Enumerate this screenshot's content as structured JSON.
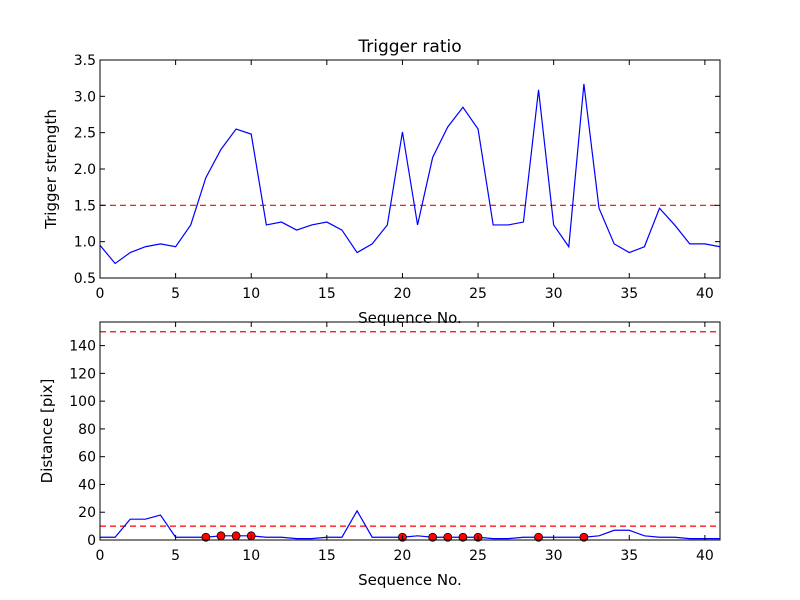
{
  "chart_data": [
    {
      "type": "line",
      "title": "Trigger ratio",
      "xlabel": "Sequence No.",
      "ylabel": "Trigger strength",
      "xlim": [
        0,
        41
      ],
      "ylim": [
        0.5,
        3.5
      ],
      "xticks": [
        0,
        5,
        10,
        15,
        20,
        25,
        30,
        35,
        40
      ],
      "yticks": [
        0.5,
        1.0,
        1.5,
        2.0,
        2.5,
        3.0,
        3.5
      ],
      "ytick_labels": [
        "0.5",
        "1.0",
        "1.5",
        "2.0",
        "2.5",
        "3.0",
        "3.5"
      ],
      "grid": false,
      "series": [
        {
          "color": "#0000ff",
          "x": [
            0,
            1,
            2,
            3,
            4,
            5,
            6,
            7,
            8,
            9,
            10,
            11,
            12,
            13,
            14,
            15,
            16,
            17,
            18,
            19,
            20,
            21,
            22,
            23,
            24,
            25,
            26,
            27,
            28,
            29,
            30,
            31,
            32,
            33,
            34,
            35,
            36,
            37,
            38,
            39,
            40,
            41
          ],
          "values": [
            0.95,
            0.7,
            0.85,
            0.93,
            0.97,
            0.93,
            1.23,
            1.88,
            2.27,
            2.55,
            2.48,
            1.23,
            1.27,
            1.16,
            1.23,
            1.27,
            1.16,
            0.85,
            0.97,
            1.23,
            2.51,
            1.23,
            2.16,
            2.58,
            2.85,
            2.55,
            1.23,
            1.23,
            1.27,
            3.09,
            1.23,
            0.93,
            3.17,
            1.46,
            0.97,
            0.85,
            0.93,
            1.46,
            1.23,
            0.97,
            0.97,
            0.93
          ]
        }
      ],
      "threshold": {
        "value": 1.5,
        "color": "#ff0000",
        "style": "dashed"
      }
    },
    {
      "type": "line",
      "title": "",
      "xlabel": "Sequence No.",
      "ylabel": "Distance [pix]",
      "xlim": [
        0,
        41
      ],
      "ylim": [
        0,
        157
      ],
      "xticks": [
        0,
        5,
        10,
        15,
        20,
        25,
        30,
        35,
        40
      ],
      "yticks": [
        0,
        20,
        40,
        60,
        80,
        100,
        120,
        140
      ],
      "ytick_labels": [
        "0",
        "20",
        "40",
        "60",
        "80",
        "100",
        "120",
        "140"
      ],
      "grid": false,
      "series": [
        {
          "color": "#0000ff",
          "x": [
            0,
            1,
            2,
            3,
            4,
            5,
            6,
            7,
            8,
            9,
            10,
            11,
            12,
            13,
            14,
            15,
            16,
            17,
            18,
            19,
            20,
            21,
            22,
            23,
            24,
            25,
            26,
            27,
            28,
            29,
            30,
            31,
            32,
            33,
            34,
            35,
            36,
            37,
            38,
            39,
            40,
            41
          ],
          "values": [
            2,
            2,
            15,
            15,
            18,
            2,
            2,
            2,
            3,
            3,
            3,
            2,
            2,
            1,
            1,
            2,
            2,
            21,
            2,
            2,
            2,
            3,
            2,
            2,
            2,
            2,
            1,
            1,
            2,
            2,
            2,
            2,
            2,
            3,
            7,
            7,
            3,
            2,
            2,
            1,
            1,
            1
          ]
        }
      ],
      "markers": {
        "color": "#ff0000",
        "x": [
          7,
          8,
          9,
          10,
          20,
          22,
          23,
          24,
          25,
          29,
          32
        ],
        "values": [
          2,
          3,
          3,
          3,
          2,
          2,
          2,
          2,
          2,
          2,
          2
        ]
      },
      "thresholds": [
        {
          "value": 150,
          "color": "#ff0000",
          "style": "dashed"
        },
        {
          "value": 10,
          "color": "#ff0000",
          "style": "dashed"
        }
      ]
    }
  ]
}
